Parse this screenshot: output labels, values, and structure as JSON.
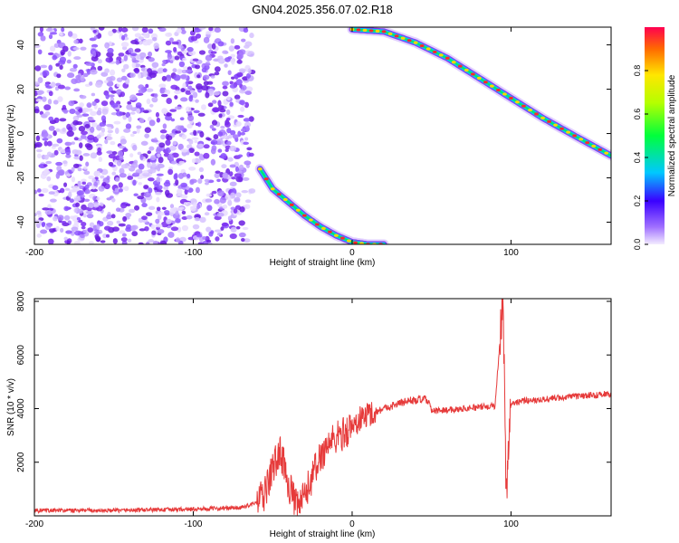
{
  "chart_data": [
    {
      "type": "heatmap",
      "title": "GN04.2025.356.07.02.R18",
      "xlabel": "Height of straight line (km)",
      "ylabel": "Frequency (Hz)",
      "xlim": [
        -200,
        163
      ],
      "ylim": [
        -50,
        48
      ],
      "x_ticks": [
        "-200",
        "-100",
        "0",
        "100"
      ],
      "y_ticks": [
        "-40",
        "-20",
        "0",
        "20",
        "40"
      ],
      "colorbar": {
        "label": "Normalized spectral amplitude",
        "range": [
          0,
          1
        ],
        "ticks": [
          "0.0",
          "0.2",
          "0.4",
          "0.6",
          "0.8"
        ],
        "colormap": "rainbow (violet to red)"
      },
      "features": [
        {
          "name": "upper-ridge",
          "x": [
            0,
            20,
            40,
            60,
            80,
            100,
            120,
            140,
            163
          ],
          "y": [
            47,
            46,
            41,
            34,
            25,
            16,
            7,
            -1,
            -10
          ]
        },
        {
          "name": "lower-ridge",
          "x": [
            -58,
            -50,
            -40,
            -30,
            -20,
            -10,
            0,
            10,
            20
          ],
          "y": [
            -16,
            -25,
            -31,
            -37,
            -42,
            -46,
            -49,
            -50,
            -50
          ]
        }
      ]
    },
    {
      "type": "line",
      "xlabel": "Height of straight line (km)",
      "ylabel": "SNR (10 * v/v)",
      "xlim": [
        -200,
        163
      ],
      "ylim": [
        0,
        8100
      ],
      "x_ticks": [
        "-200",
        "-100",
        "0",
        "100"
      ],
      "y_ticks": [
        "2000",
        "4000",
        "6000",
        "8000"
      ],
      "color": "#e63a3a",
      "series": [
        {
          "x": [
            -200,
            -150,
            -100,
            -70,
            -60,
            -55,
            -50,
            -45,
            -40,
            -35,
            -30,
            -25,
            -20,
            -15,
            -10,
            -5,
            0,
            5,
            10,
            15,
            20,
            25,
            30,
            35,
            40,
            45,
            48,
            50,
            60,
            70,
            80,
            90,
            95,
            97,
            100,
            105,
            110,
            120,
            130,
            140,
            150,
            163
          ],
          "y": [
            200,
            200,
            250,
            300,
            500,
            800,
            1800,
            2400,
            1200,
            300,
            700,
            1500,
            2200,
            2700,
            2900,
            3100,
            3300,
            3600,
            3800,
            3900,
            4000,
            4100,
            4200,
            4300,
            4300,
            4350,
            4300,
            3900,
            3950,
            4000,
            4050,
            4100,
            8100,
            1000,
            4200,
            4250,
            4300,
            4350,
            4400,
            4450,
            4500,
            4550
          ]
        }
      ]
    }
  ]
}
